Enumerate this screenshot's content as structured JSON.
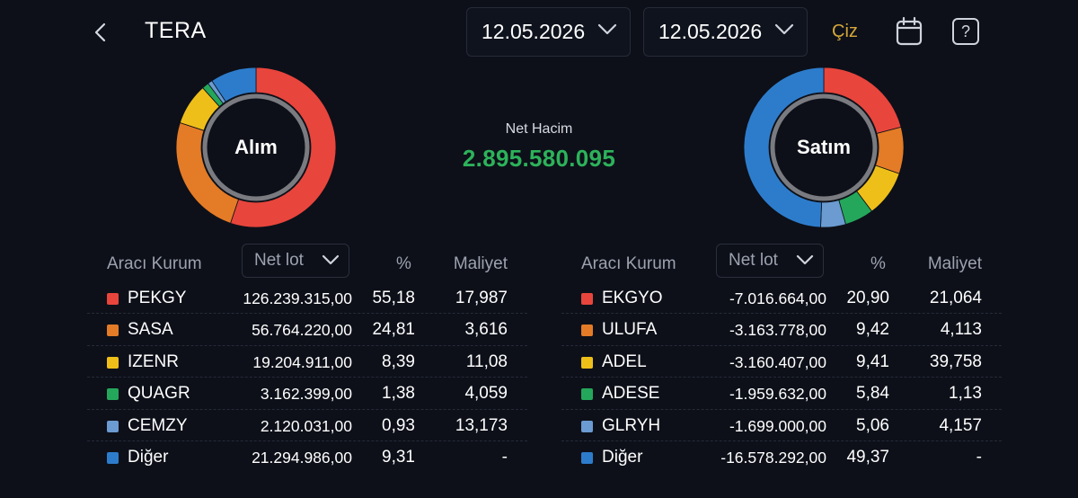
{
  "header": {
    "title": "TERA",
    "date_start": "12.05.2026",
    "date_end": "12.05.2026",
    "draw_label": "Çiz"
  },
  "summary": {
    "buy_label": "Alım",
    "sell_label": "Satım",
    "net_label": "Net Hacim",
    "net_value": "2.895.580.095"
  },
  "colors": {
    "red": "#e8453c",
    "orange": "#e47b26",
    "yellow": "#efbf19",
    "green": "#24a75a",
    "lightblue": "#6b9bd1",
    "blue": "#2d7ccc",
    "accent": "#d6a73a",
    "positive": "#2db25a"
  },
  "columns": {
    "broker": "Aracı Kurum",
    "lot": "Net lot",
    "pct": "%",
    "cost": "Maliyet"
  },
  "buy_rows": [
    {
      "name": "PEKGY",
      "lot": "126.239.315,00",
      "pct": "55,18",
      "cost": "17,987",
      "color": "#e8453c"
    },
    {
      "name": "SASA",
      "lot": "56.764.220,00",
      "pct": "24,81",
      "cost": "3,616",
      "color": "#e47b26"
    },
    {
      "name": "IZENR",
      "lot": "19.204.911,00",
      "pct": "8,39",
      "cost": "11,08",
      "color": "#efbf19"
    },
    {
      "name": "QUAGR",
      "lot": "3.162.399,00",
      "pct": "1,38",
      "cost": "4,059",
      "color": "#24a75a"
    },
    {
      "name": "CEMZY",
      "lot": "2.120.031,00",
      "pct": "0,93",
      "cost": "13,173",
      "color": "#6b9bd1"
    },
    {
      "name": "Diğer",
      "lot": "21.294.986,00",
      "pct": "9,31",
      "cost": "-",
      "color": "#2d7ccc"
    }
  ],
  "sell_rows": [
    {
      "name": "EKGYO",
      "lot": "-7.016.664,00",
      "pct": "20,90",
      "cost": "21,064",
      "color": "#e8453c"
    },
    {
      "name": "ULUFA",
      "lot": "-3.163.778,00",
      "pct": "9,42",
      "cost": "4,113",
      "color": "#e47b26"
    },
    {
      "name": "ADEL",
      "lot": "-3.160.407,00",
      "pct": "9,41",
      "cost": "39,758",
      "color": "#efbf19"
    },
    {
      "name": "ADESE",
      "lot": "-1.959.632,00",
      "pct": "5,84",
      "cost": "1,13",
      "color": "#24a75a"
    },
    {
      "name": "GLRYH",
      "lot": "-1.699.000,00",
      "pct": "5,06",
      "cost": "4,157",
      "color": "#6b9bd1"
    },
    {
      "name": "Diğer",
      "lot": "-16.578.292,00",
      "pct": "49,37",
      "cost": "-",
      "color": "#2d7ccc"
    }
  ],
  "buy_donut": [
    55.18,
    24.81,
    8.39,
    1.38,
    0.93,
    9.31
  ],
  "sell_donut": [
    20.9,
    9.42,
    9.41,
    5.84,
    5.06,
    49.37
  ]
}
